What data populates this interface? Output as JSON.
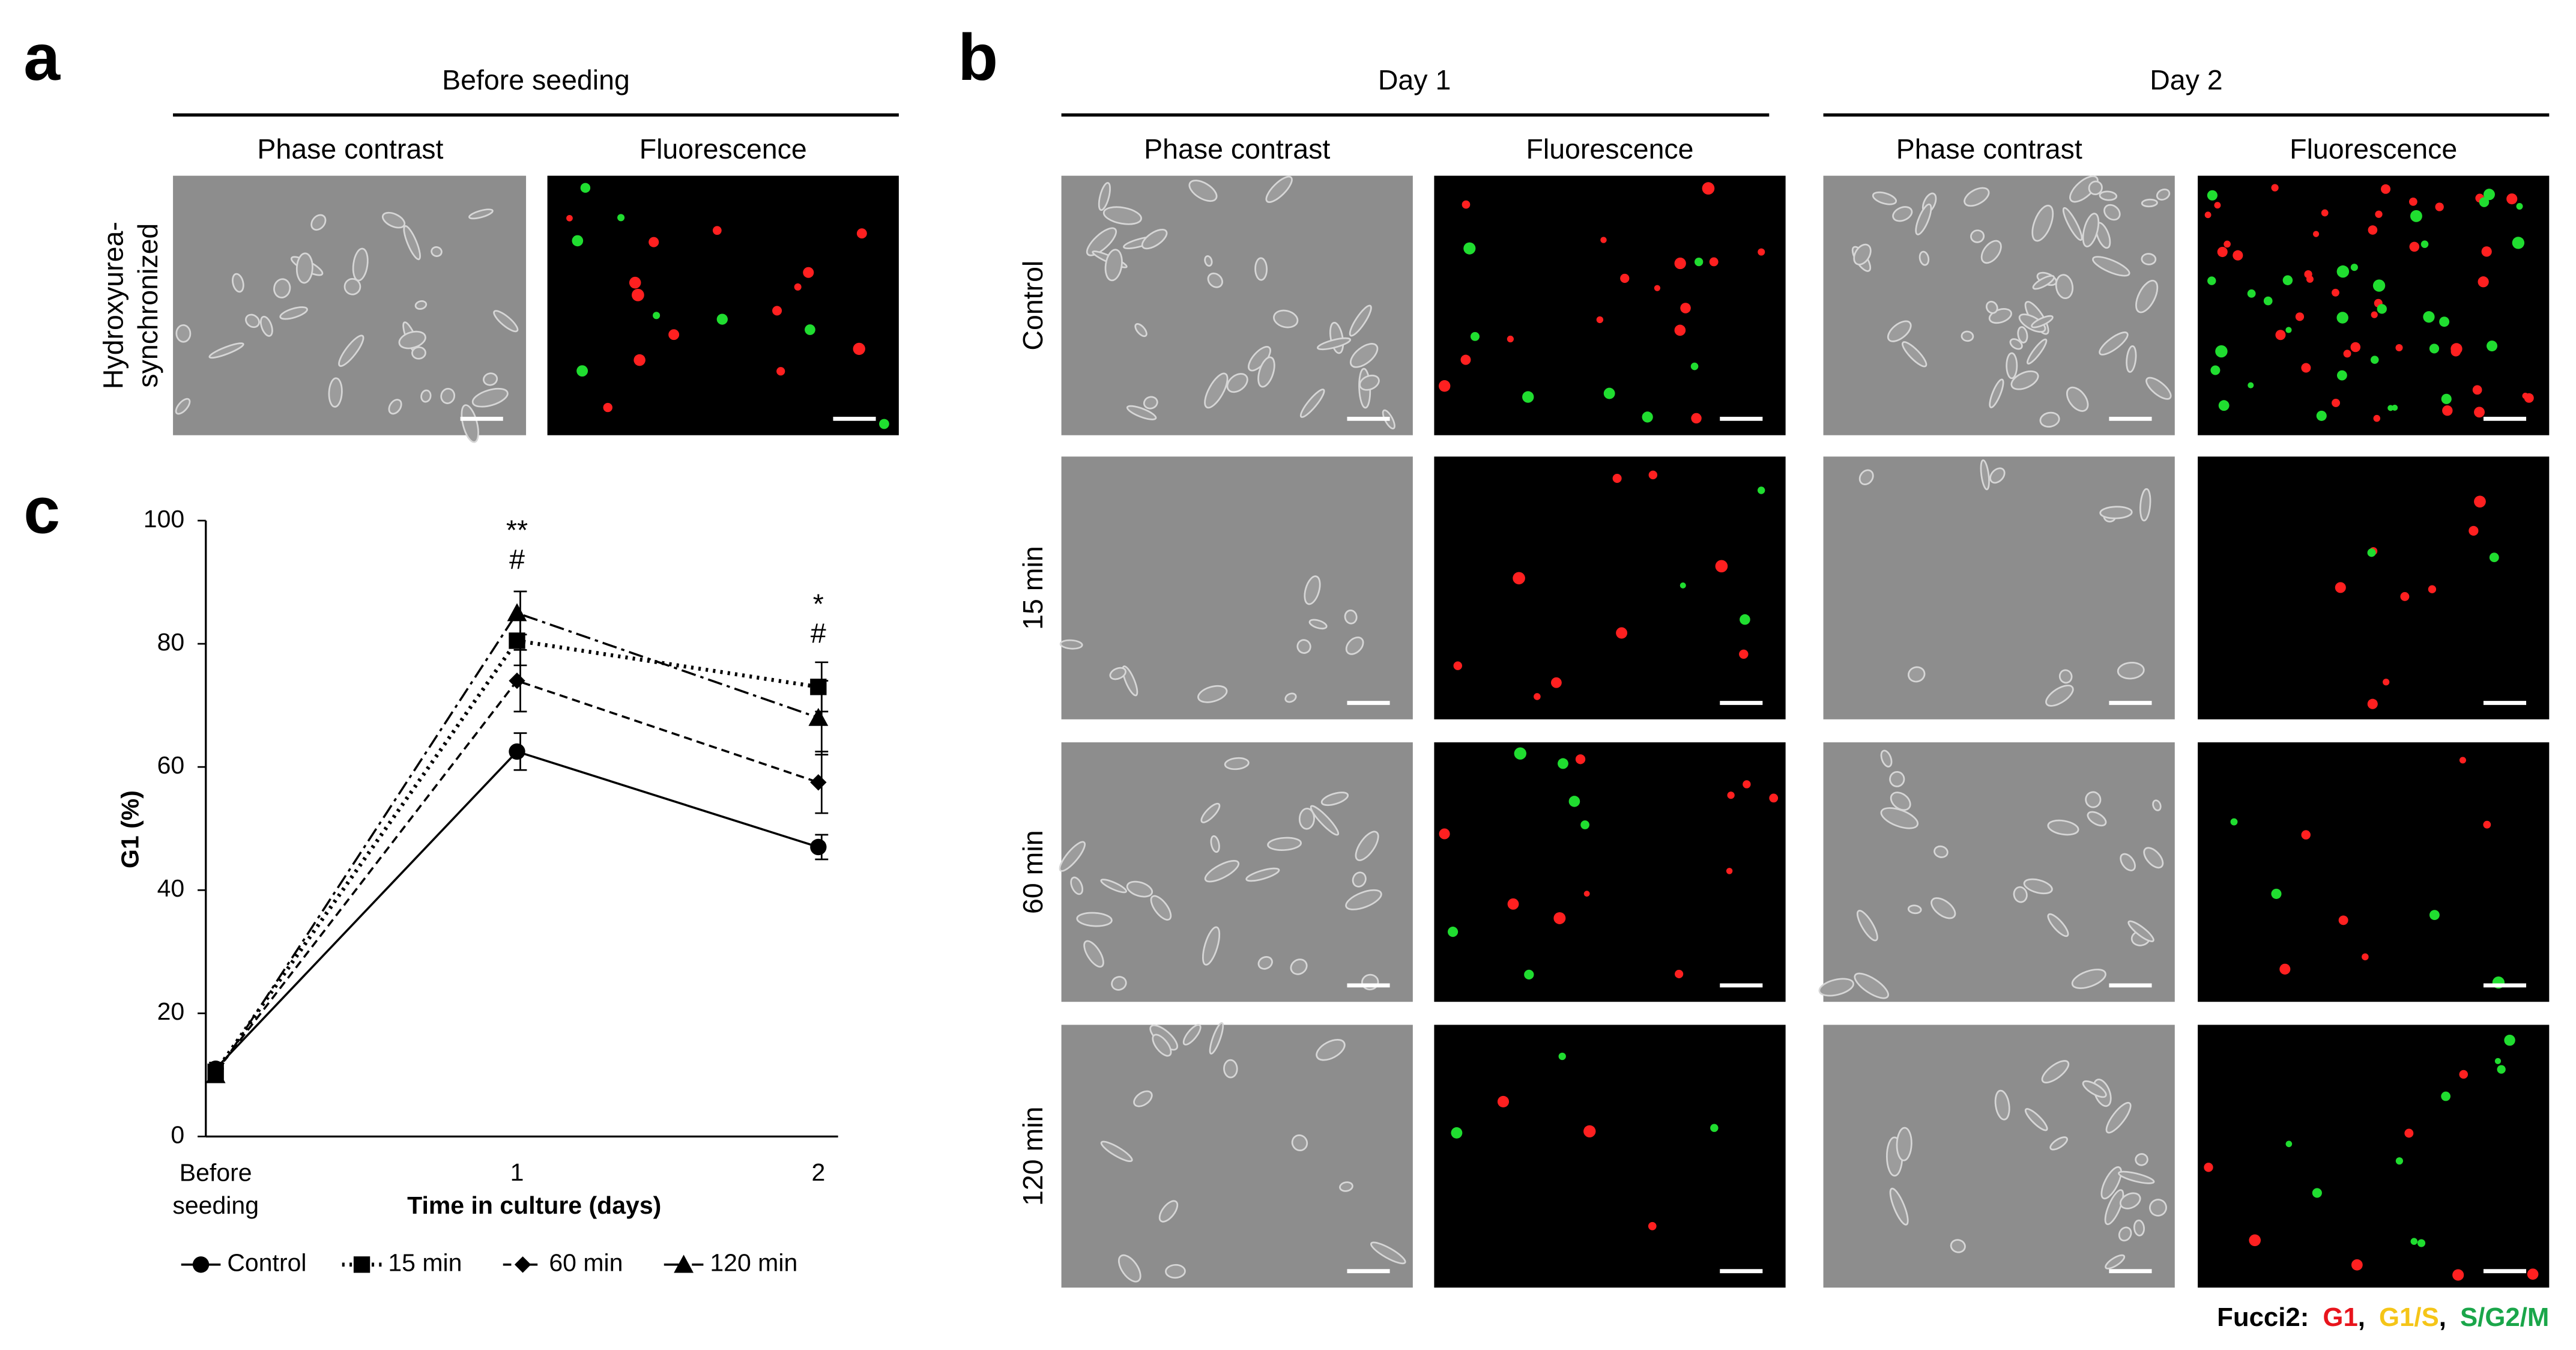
{
  "panels": {
    "a": {
      "letter": "a",
      "title": "Before seeding",
      "columns": [
        "Phase contrast",
        "Fluorescence"
      ],
      "row_label": [
        "Hydroxyurea-",
        "synchronized"
      ]
    },
    "b": {
      "letter": "b",
      "days": [
        {
          "title": "Day 1",
          "columns": [
            "Phase contrast",
            "Fluorescence"
          ]
        },
        {
          "title": "Day 2",
          "columns": [
            "Phase contrast",
            "Fluorescence"
          ]
        }
      ],
      "rows": [
        "Control",
        "15 min",
        "60 min",
        "120 min"
      ],
      "legend": {
        "label": "Fucci2:",
        "separator": ",",
        "phases": [
          {
            "name": "G1",
            "color": "#e8141c"
          },
          {
            "name": "G1/S",
            "color": "#f5c518"
          },
          {
            "name": "S/G2/M",
            "color": "#1aa64a"
          }
        ]
      }
    },
    "c": {
      "letter": "c"
    }
  },
  "chart_data": {
    "type": "line",
    "categories": [
      "Before seeding",
      "1",
      "2"
    ],
    "xlabel": "Time in culture (days)",
    "ylabel": "G1 (%)",
    "ylim": [
      0,
      100
    ],
    "yticks": [
      0,
      20,
      40,
      60,
      80,
      100
    ],
    "annotations": [
      "**",
      "#",
      "*",
      "#"
    ],
    "series": [
      {
        "name": "Control",
        "color": "#000000",
        "dash": "solid",
        "marker": "circle",
        "values": [
          11,
          62.5,
          47
        ],
        "errors": [
          1,
          3,
          2
        ]
      },
      {
        "name": "15 min",
        "color": "#000000",
        "dash": "dotted",
        "marker": "square",
        "values": [
          10.5,
          80.5,
          73
        ],
        "errors": [
          1,
          4,
          4
        ]
      },
      {
        "name": "60 min",
        "color": "#000000",
        "dash": "dashed",
        "marker": "diamond",
        "values": [
          10.5,
          74,
          57.5
        ],
        "errors": [
          1,
          5,
          5
        ]
      },
      {
        "name": "120 min",
        "color": "#000000",
        "dash": "dashdot",
        "marker": "triangle",
        "values": [
          10,
          85,
          68
        ],
        "errors": [
          1,
          3.5,
          6
        ]
      }
    ]
  }
}
